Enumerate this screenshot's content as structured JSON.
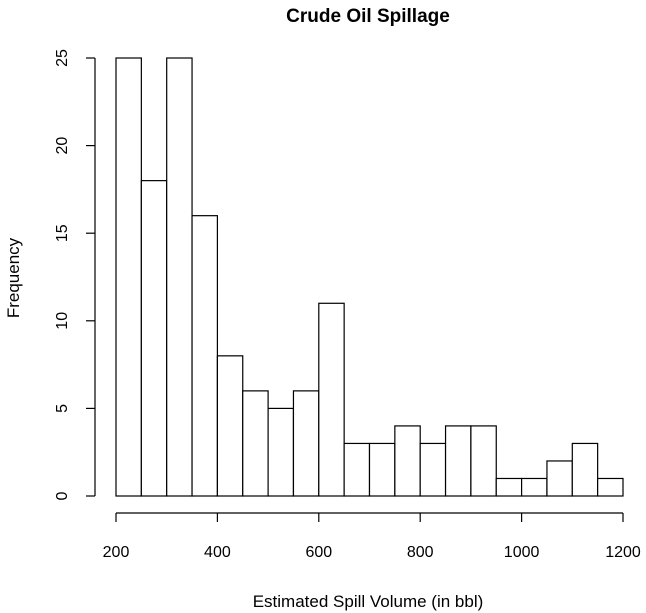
{
  "chart_data": {
    "type": "bar",
    "title": "Crude Oil Spillage",
    "xlabel": "Estimated Spill Volume (in bbl)",
    "ylabel": "Frequency",
    "bin_width": 50,
    "bins": [
      {
        "start": 200,
        "end": 250,
        "count": 25
      },
      {
        "start": 250,
        "end": 300,
        "count": 18
      },
      {
        "start": 300,
        "end": 350,
        "count": 25
      },
      {
        "start": 350,
        "end": 400,
        "count": 16
      },
      {
        "start": 400,
        "end": 450,
        "count": 8
      },
      {
        "start": 450,
        "end": 500,
        "count": 6
      },
      {
        "start": 500,
        "end": 550,
        "count": 5
      },
      {
        "start": 550,
        "end": 600,
        "count": 6
      },
      {
        "start": 600,
        "end": 650,
        "count": 11
      },
      {
        "start": 650,
        "end": 700,
        "count": 3
      },
      {
        "start": 700,
        "end": 750,
        "count": 3
      },
      {
        "start": 750,
        "end": 800,
        "count": 4
      },
      {
        "start": 800,
        "end": 850,
        "count": 3
      },
      {
        "start": 850,
        "end": 900,
        "count": 4
      },
      {
        "start": 900,
        "end": 950,
        "count": 4
      },
      {
        "start": 950,
        "end": 1000,
        "count": 1
      },
      {
        "start": 1000,
        "end": 1050,
        "count": 1
      },
      {
        "start": 1050,
        "end": 1100,
        "count": 2
      },
      {
        "start": 1100,
        "end": 1150,
        "count": 3
      },
      {
        "start": 1150,
        "end": 1200,
        "count": 1
      }
    ],
    "xlim": [
      200,
      1200
    ],
    "ylim": [
      0,
      25
    ],
    "x_ticks": [
      200,
      400,
      600,
      800,
      1000,
      1200
    ],
    "x_tick_labels": [
      "200",
      "400",
      "600",
      "800",
      "1000",
      "1200"
    ],
    "y_ticks": [
      0,
      5,
      10,
      15,
      20,
      25
    ],
    "y_tick_labels": [
      "0",
      "5",
      "10",
      "15",
      "20",
      "25"
    ],
    "grid": false,
    "legend": "none",
    "bar_fill": "#ffffff",
    "bar_stroke": "#000000"
  }
}
